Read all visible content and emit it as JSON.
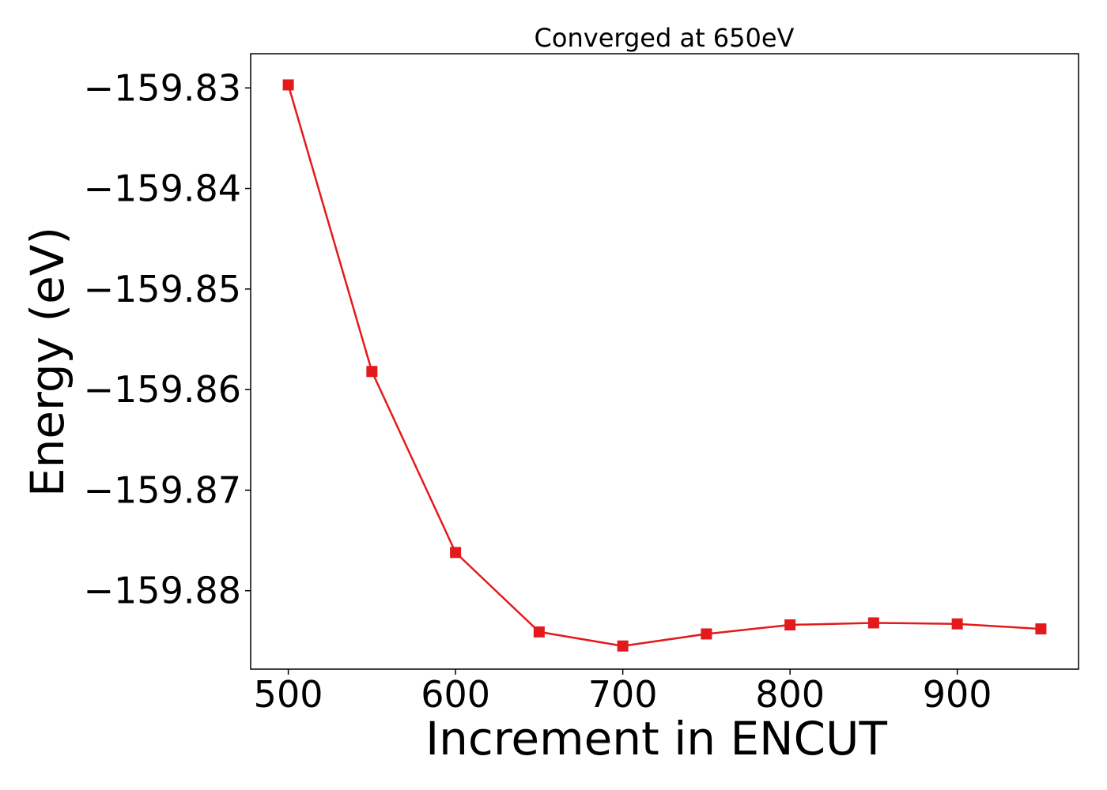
{
  "chart_data": {
    "type": "line",
    "title": "Converged at 650eV",
    "xlabel": "Increment in ENCUT",
    "ylabel": "Energy (eV)",
    "xlim": [
      477.5,
      972.5
    ],
    "ylim": [
      -159.8878,
      -159.8266
    ],
    "xticks": [
      500,
      600,
      700,
      800,
      900
    ],
    "xtick_labels": [
      "500",
      "600",
      "700",
      "800",
      "900"
    ],
    "yticks": [
      -159.83,
      -159.84,
      -159.85,
      -159.86,
      -159.87,
      -159.88
    ],
    "ytick_labels": [
      "−159.83",
      "−159.84",
      "−159.85",
      "−159.86",
      "−159.87",
      "−159.88"
    ],
    "grid": false,
    "series": [
      {
        "color": "#e31a1c",
        "marker": "square",
        "x": [
          500,
          550,
          600,
          650,
          700,
          750,
          800,
          850,
          900,
          950
        ],
        "y": [
          -159.8297,
          -159.8582,
          -159.8762,
          -159.8841,
          -159.8855,
          -159.8843,
          -159.8834,
          -159.8832,
          -159.8833,
          -159.8838
        ]
      }
    ]
  }
}
